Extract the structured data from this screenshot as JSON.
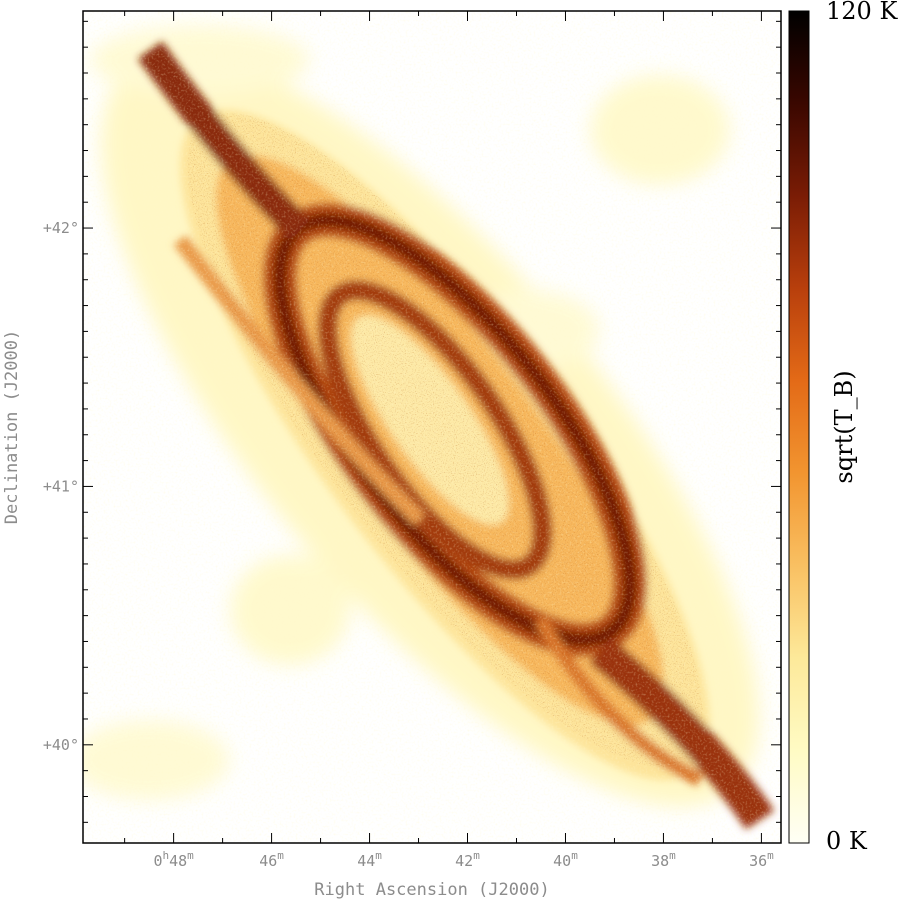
{
  "chart_data": {
    "type": "heatmap",
    "title": "",
    "xlabel": "Right Ascension (J2000)",
    "ylabel": "Declination (J2000)",
    "x_ticks": [
      {
        "value": 48,
        "label_h": "0",
        "label_m": "48"
      },
      {
        "value": 46,
        "label_h": "",
        "label_m": "46"
      },
      {
        "value": 44,
        "label_h": "",
        "label_m": "44"
      },
      {
        "value": 42,
        "label_h": "",
        "label_m": "42"
      },
      {
        "value": 40,
        "label_h": "",
        "label_m": "40"
      },
      {
        "value": 38,
        "label_h": "",
        "label_m": "38"
      },
      {
        "value": 36,
        "label_h": "",
        "label_m": "36"
      }
    ],
    "y_ticks": [
      {
        "value": 42,
        "label": "+42°"
      },
      {
        "value": 41,
        "label": "+41°"
      },
      {
        "value": 40,
        "label": "+40°"
      }
    ],
    "x_range_minutes": [
      49.85,
      35.6
    ],
    "y_range_deg": [
      39.62,
      42.84
    ],
    "colorbar": {
      "label": "sqrt(T_B)",
      "max_label": "120 K",
      "min_label": "0 K",
      "range": [
        0,
        120
      ],
      "colormap": [
        "#fffff5",
        "#fffbc4",
        "#fde99a",
        "#f9c062",
        "#f29530",
        "#e36a17",
        "#b83f0c",
        "#7a1c05",
        "#3a0700",
        "#000000"
      ]
    }
  }
}
